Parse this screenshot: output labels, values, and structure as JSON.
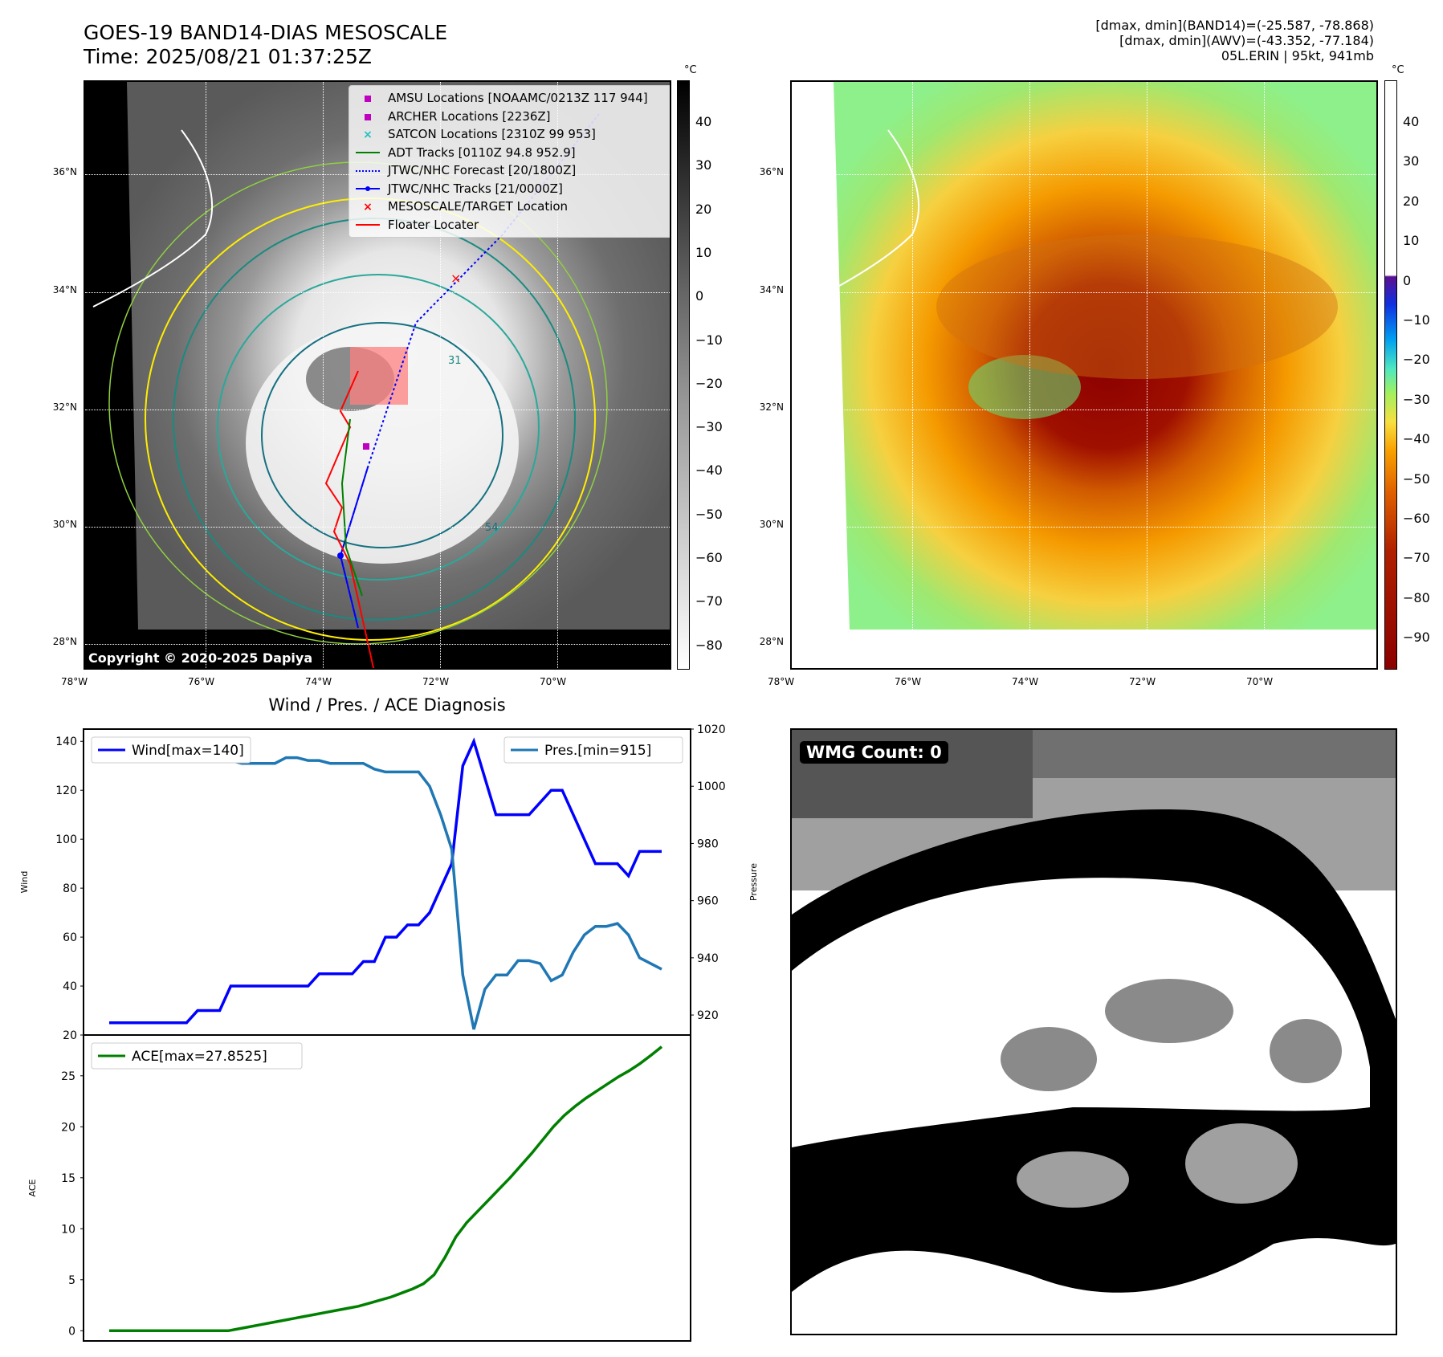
{
  "header": {
    "title_line1": "GOES-19 BAND14-DIAS MESOSCALE",
    "title_line2": "Time: 2025/08/21 01:37:25Z",
    "meta_line1": "[dmax, dmin](BAND14)=(-25.587, -78.868)",
    "meta_line2": "[dmax, dmin](AWV)=(-43.352, -77.184)",
    "meta_line3": "05L.ERIN | 95kt, 941mb"
  },
  "map_panels": {
    "lat_labels": [
      "36°N",
      "34°N",
      "32°N",
      "30°N",
      "28°N"
    ],
    "lon_labels": [
      "78°W",
      "76°W",
      "74°W",
      "72°W",
      "70°W"
    ],
    "copyright": "Copyright © 2020-2025 Dapiya",
    "colorbar_unit": "°C",
    "left_colorbar_ticks": [
      "40",
      "30",
      "20",
      "10",
      "0",
      "−10",
      "−20",
      "−30",
      "−40",
      "−50",
      "−60",
      "−70",
      "−80"
    ],
    "right_colorbar_ticks": [
      "40",
      "30",
      "20",
      "10",
      "0",
      "−10",
      "−20",
      "−30",
      "−40",
      "−50",
      "−60",
      "−70",
      "−80",
      "−90"
    ],
    "contour_labels": [
      "31",
      "54"
    ],
    "legend": [
      {
        "label": "AMSU Locations [NOAAMC/0213Z 117 944]",
        "marker": "square",
        "color": "#c000c0"
      },
      {
        "label": "ARCHER Locations [2236Z]",
        "marker": "square",
        "color": "#c000c0"
      },
      {
        "label": "SATCON Locations [2310Z 99 953]",
        "marker": "x",
        "color": "#20c0c0"
      },
      {
        "label": "ADT Tracks [0110Z 94.8 952.9]",
        "marker": "line",
        "color": "#008000"
      },
      {
        "label": "JTWC/NHC Forecast [20/1800Z]",
        "marker": "dotted",
        "color": "#0000ff"
      },
      {
        "label": "JTWC/NHC Tracks [21/0000Z]",
        "marker": "line-dot",
        "color": "#0000ff"
      },
      {
        "label": "MESOSCALE/TARGET Location",
        "marker": "x",
        "color": "#ff0000"
      },
      {
        "label": "Floater Locater",
        "marker": "line",
        "color": "#ff0000"
      }
    ]
  },
  "diagnosis": {
    "title": "Wind / Pres. / ACE Diagnosis",
    "wind_legend": "Wind[max=140]",
    "pres_legend": "Pres.[min=915]",
    "ace_legend": "ACE[max=27.8525]",
    "wind_ylabel": "Wind",
    "pres_ylabel": "Pressure",
    "ace_ylabel": "ACE",
    "wind_ticks": [
      "140",
      "120",
      "100",
      "80",
      "60",
      "40",
      "20"
    ],
    "pres_ticks": [
      "1020",
      "1000",
      "980",
      "960",
      "940",
      "920"
    ],
    "ace_ticks": [
      "25",
      "20",
      "15",
      "10",
      "5",
      "0"
    ],
    "colors": {
      "wind": "#0000ff",
      "pres": "#1f77b4",
      "ace": "#008000"
    }
  },
  "wmg": {
    "label": "WMG Count: 0"
  },
  "chart_data": [
    {
      "type": "line",
      "series": [
        {
          "name": "Wind[max=140]",
          "axis": "left",
          "values": [
            25,
            25,
            25,
            25,
            25,
            25,
            25,
            25,
            30,
            30,
            30,
            40,
            40,
            40,
            40,
            40,
            40,
            40,
            40,
            45,
            45,
            45,
            45,
            50,
            50,
            60,
            60,
            65,
            65,
            70,
            80,
            90,
            130,
            140,
            125,
            110,
            110,
            110,
            110,
            115,
            120,
            120,
            110,
            100,
            90,
            90,
            90,
            85,
            95,
            95,
            95
          ]
        },
        {
          "name": "Pres.[min=915]",
          "axis": "right",
          "values": [
            1015,
            1015,
            1011,
            1010,
            1009,
            1009,
            1009,
            1009,
            1009,
            1009,
            1009,
            1009,
            1008,
            1008,
            1008,
            1008,
            1010,
            1010,
            1009,
            1009,
            1008,
            1008,
            1008,
            1008,
            1006,
            1005,
            1005,
            1005,
            1005,
            1000,
            990,
            978,
            934,
            915,
            929,
            934,
            934,
            939,
            939,
            938,
            932,
            934,
            942,
            948,
            951,
            951,
            952,
            948,
            940,
            938,
            936
          ]
        }
      ],
      "ylim_left": [
        20,
        145
      ],
      "ylim_right": [
        913,
        1020
      ]
    },
    {
      "type": "line",
      "series": [
        {
          "name": "ACE[max=27.8525]",
          "values": [
            0,
            0,
            0,
            0,
            0,
            0,
            0,
            0,
            0,
            0,
            0,
            0,
            0.2,
            0.4,
            0.6,
            0.8,
            1.0,
            1.2,
            1.4,
            1.6,
            1.8,
            2.0,
            2.2,
            2.4,
            2.7,
            3.0,
            3.3,
            3.7,
            4.1,
            4.6,
            5.5,
            7.2,
            9.2,
            10.6,
            11.7,
            12.8,
            13.9,
            15.0,
            16.2,
            17.4,
            18.7,
            20.0,
            21.1,
            22.0,
            22.8,
            23.5,
            24.2,
            24.9,
            25.5,
            26.2,
            27.0,
            27.85
          ]
        }
      ],
      "ylim": [
        -1,
        29
      ]
    }
  ]
}
